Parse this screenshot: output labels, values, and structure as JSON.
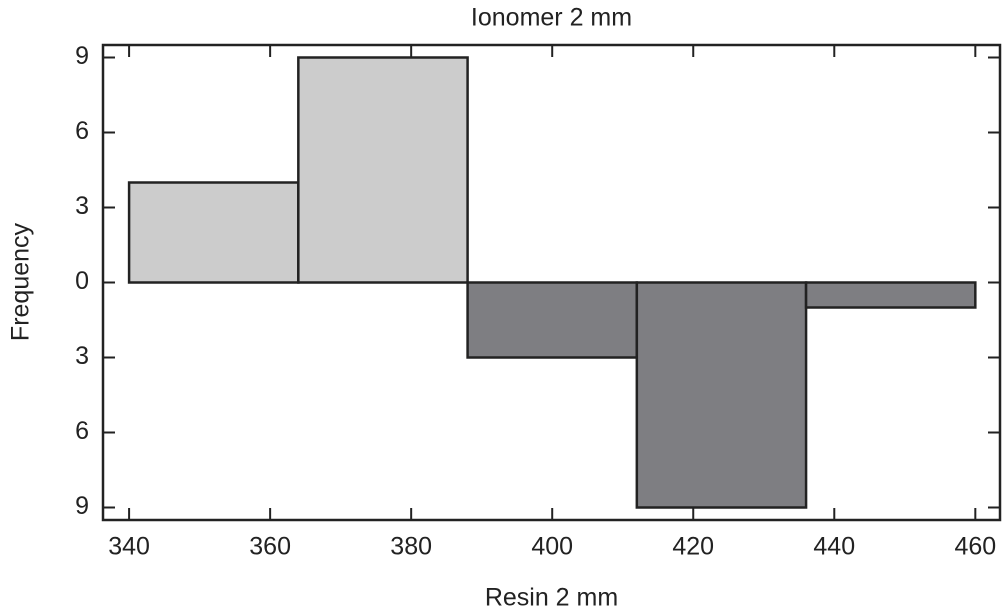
{
  "chart_data": {
    "type": "histogram",
    "bins": [
      340,
      364,
      388,
      412,
      436,
      460
    ],
    "series": [
      {
        "name": "Ionomer 2 mm",
        "color": "#cccccc",
        "values": [
          4,
          9,
          0,
          0,
          0
        ]
      },
      {
        "name": "Resin 2 mm",
        "color": "#7e7e82",
        "values": [
          0,
          0,
          -3,
          -9,
          -1
        ]
      }
    ],
    "y_label": "Frequency",
    "xlim": [
      336.3,
      463.5
    ],
    "xticks": [
      340,
      360,
      380,
      400,
      420,
      440,
      460
    ],
    "ylim": [
      -9.5,
      9.5
    ],
    "yticks": [
      9,
      6,
      3,
      0,
      {
        "value": -3,
        "label": "3"
      },
      {
        "value": -6,
        "label": "6"
      },
      {
        "value": -9,
        "label": "9"
      }
    ]
  }
}
